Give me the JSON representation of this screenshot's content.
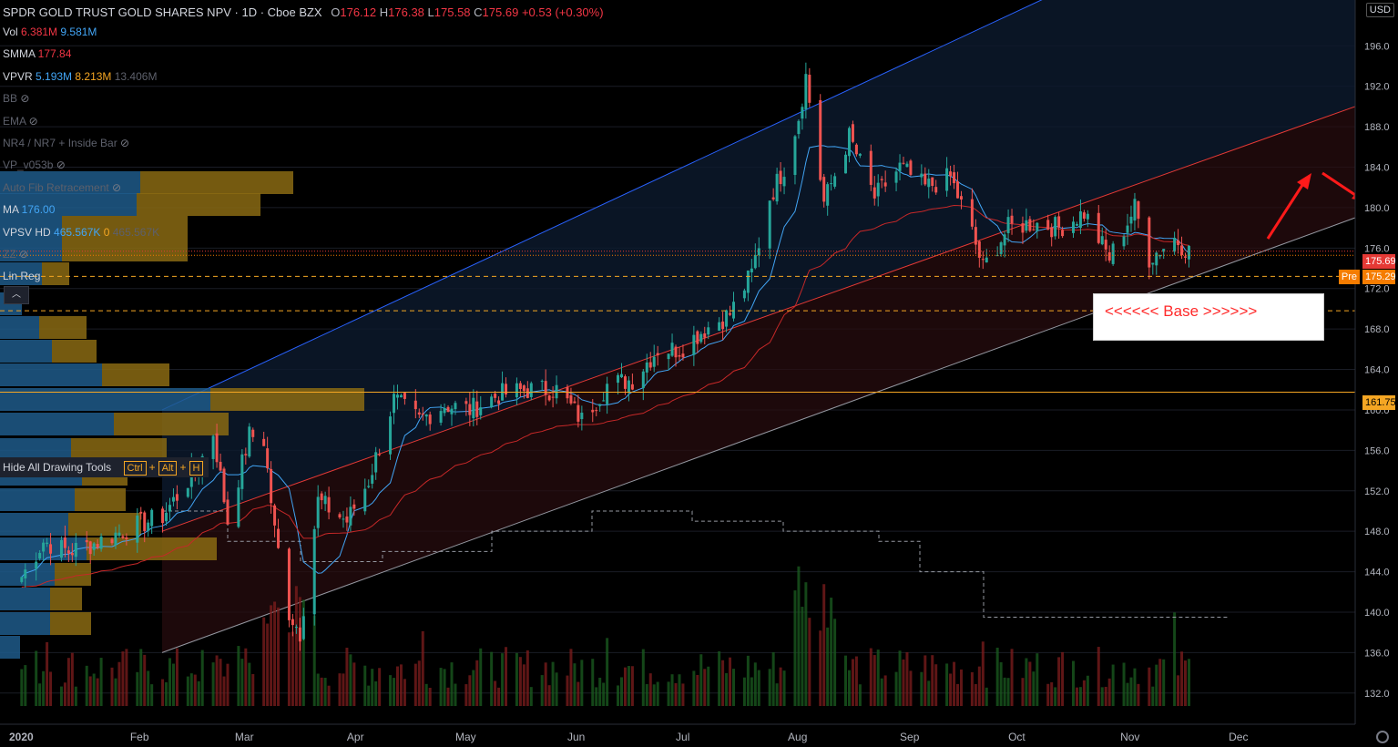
{
  "header": {
    "symbol": "SPDR GOLD TRUST GOLD SHARES NPV · 1D · Cboe BZX",
    "o_label": "O",
    "o": "176.12",
    "h_label": "H",
    "h": "176.38",
    "l_label": "L",
    "l": "175.58",
    "c_label": "C",
    "c": "175.69",
    "change": "+0.53 (+0.30%)"
  },
  "currency": "USD",
  "indicators": [
    {
      "name": "Vol",
      "v1": "6.381M",
      "v2": "9.581M",
      "c1": "#f23645",
      "c2": "#42a5f5"
    },
    {
      "name": "SMMA",
      "v1": "177.84",
      "c1": "#f23645"
    },
    {
      "name": "VPVR",
      "v1": "5.193M",
      "v2": "8.213M",
      "v3": "13.406M",
      "c1": "#42a5f5",
      "c2": "#f5a623"
    },
    {
      "name": "BB",
      "hidden": true
    },
    {
      "name": "EMA",
      "hidden": true
    },
    {
      "name": "NR4 / NR7 + Inside Bar",
      "hidden": true
    },
    {
      "name": "VP_v053b",
      "hidden": true
    },
    {
      "name": "Auto Fib Retracement",
      "hidden": true
    },
    {
      "name": "MA",
      "v1": "176.00",
      "c1": "#42a5f5"
    },
    {
      "name": "VPSV HD",
      "v1": "465.567K",
      "v2": "0",
      "v3": "465.567K",
      "c1": "#42a5f5",
      "c2": "#f5a623"
    },
    {
      "name": "ZZ",
      "hidden": true
    },
    {
      "name": "Lin Reg"
    }
  ],
  "hide_tools": {
    "label": "Hide All Drawing Tools",
    "k1": "Ctrl",
    "k2": "Alt",
    "k3": "H"
  },
  "annotation": "<<<<<< Base >>>>>>",
  "price_tags": {
    "last": "175.69",
    "pre_label": "Pre",
    "pre": "175.29",
    "level": "161.75"
  },
  "chart_data": {
    "type": "candlestick",
    "y_ticks": [
      196,
      192,
      188,
      184,
      180,
      176,
      172,
      168,
      164,
      160,
      156,
      152,
      148,
      144,
      140,
      136,
      132
    ],
    "x_labels": [
      "2020",
      "Feb",
      "Mar",
      "Apr",
      "May",
      "Jun",
      "Jul",
      "Aug",
      "Sep",
      "Oct",
      "Nov",
      "Dec"
    ],
    "ylim": [
      130,
      199
    ],
    "horizontal_levels": [
      {
        "price": 161.75,
        "color": "#f5a623",
        "style": "solid"
      },
      {
        "price": 173.2,
        "color": "#f5a623",
        "style": "dashed"
      },
      {
        "price": 169.8,
        "color": "#f5a623",
        "style": "dashed"
      }
    ],
    "close_path": [
      [
        "2020-01-02",
        143.5
      ],
      [
        "2020-01-08",
        147.0
      ],
      [
        "2020-01-15",
        146.0
      ],
      [
        "2020-01-22",
        146.8
      ],
      [
        "2020-01-31",
        148.2
      ],
      [
        "2020-02-10",
        149.5
      ],
      [
        "2020-02-20",
        154.5
      ],
      [
        "2020-02-24",
        157.8
      ],
      [
        "2020-02-28",
        149.0
      ],
      [
        "2020-03-05",
        157.5
      ],
      [
        "2020-03-09",
        157.0
      ],
      [
        "2020-03-12",
        148.0
      ],
      [
        "2020-03-16",
        140.0
      ],
      [
        "2020-03-19",
        138.0
      ],
      [
        "2020-03-24",
        151.0
      ],
      [
        "2020-04-01",
        149.0
      ],
      [
        "2020-04-07",
        153.0
      ],
      [
        "2020-04-14",
        161.0
      ],
      [
        "2020-04-21",
        159.0
      ],
      [
        "2020-04-28",
        160.5
      ],
      [
        "2020-05-05",
        160.0
      ],
      [
        "2020-05-13",
        161.5
      ],
      [
        "2020-05-21",
        162.0
      ],
      [
        "2020-05-29",
        162.0
      ],
      [
        "2020-06-05",
        159.0
      ],
      [
        "2020-06-12",
        162.5
      ],
      [
        "2020-06-19",
        163.0
      ],
      [
        "2020-06-26",
        166.0
      ],
      [
        "2020-07-02",
        166.0
      ],
      [
        "2020-07-09",
        168.0
      ],
      [
        "2020-07-16",
        169.5
      ],
      [
        "2020-07-22",
        173.5
      ],
      [
        "2020-07-27",
        181.0
      ],
      [
        "2020-07-31",
        184.0
      ],
      [
        "2020-08-04",
        189.0
      ],
      [
        "2020-08-06",
        193.0
      ],
      [
        "2020-08-11",
        180.5
      ],
      [
        "2020-08-18",
        187.0
      ],
      [
        "2020-08-25",
        181.0
      ],
      [
        "2020-09-01",
        184.0
      ],
      [
        "2020-09-08",
        182.0
      ],
      [
        "2020-09-15",
        183.0
      ],
      [
        "2020-09-21",
        177.5
      ],
      [
        "2020-09-24",
        174.0
      ],
      [
        "2020-10-01",
        178.0
      ],
      [
        "2020-10-08",
        178.5
      ],
      [
        "2020-10-15",
        178.0
      ],
      [
        "2020-10-22",
        179.5
      ],
      [
        "2020-10-29",
        175.0
      ],
      [
        "2020-11-05",
        180.0
      ],
      [
        "2020-11-09",
        175.0
      ],
      [
        "2020-11-16",
        177.0
      ],
      [
        "2020-11-20",
        175.69
      ]
    ]
  }
}
